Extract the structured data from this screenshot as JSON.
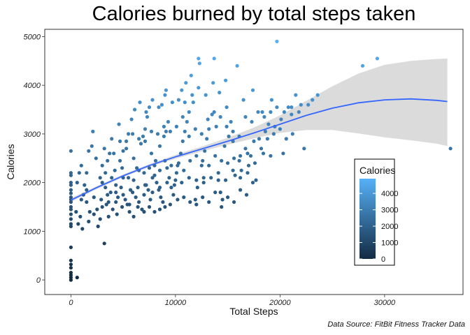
{
  "chart_data": {
    "type": "scatter",
    "title": "Calories burned by total steps taken",
    "xlabel": "Total Steps",
    "ylabel": "Calories",
    "caption": "Data Source: FitBit Fitness Tracker Data",
    "xlim": [
      -2500,
      37500
    ],
    "ylim": [
      -300,
      5150
    ],
    "xticks": [
      0,
      10000,
      20000,
      30000
    ],
    "xtick_labels": [
      "0",
      "10000",
      "20000",
      "30000"
    ],
    "yticks": [
      0,
      1000,
      2000,
      3000,
      4000,
      5000
    ],
    "ytick_labels": [
      "0",
      "1000",
      "2000",
      "3000",
      "4000",
      "5000"
    ],
    "grid": false,
    "legend": {
      "title": "Calories",
      "position": "right-inside",
      "range": [
        0,
        4900
      ],
      "labels": [
        "0",
        "1000",
        "2000",
        "3000",
        "4000"
      ],
      "values": [
        0,
        1000,
        2000,
        3000,
        4000
      ],
      "color_low": "#132B43",
      "color_high": "#56B1F7"
    },
    "colors": {
      "trend": "#3366FF",
      "band": "#D9D9D9"
    },
    "trend": {
      "method": "smooth",
      "x": [
        0,
        2500,
        5000,
        7500,
        10000,
        12500,
        15000,
        17500,
        20000,
        22500,
        25000,
        27500,
        30000,
        32500,
        35000,
        36000
      ],
      "y": [
        1640,
        1900,
        2140,
        2350,
        2530,
        2690,
        2850,
        3020,
        3200,
        3380,
        3530,
        3640,
        3700,
        3720,
        3690,
        3665
      ],
      "lower": [
        1600,
        1870,
        2110,
        2320,
        2490,
        2640,
        2780,
        2910,
        3020,
        3080,
        3080,
        3010,
        2930,
        2870,
        2800,
        2750
      ],
      "upper": [
        1680,
        1930,
        2170,
        2380,
        2570,
        2740,
        2920,
        3130,
        3380,
        3680,
        3980,
        4240,
        4420,
        4500,
        4540,
        4550
      ]
    },
    "points": [
      [
        0,
        0
      ],
      [
        0,
        50
      ],
      [
        0,
        100
      ],
      [
        0,
        150
      ],
      [
        0,
        250
      ],
      [
        0,
        320
      ],
      [
        0,
        400
      ],
      [
        0,
        670
      ],
      [
        600,
        50
      ],
      [
        0,
        2650
      ],
      [
        0,
        2200
      ],
      [
        0,
        2150
      ],
      [
        0,
        2000
      ],
      [
        0,
        1950
      ],
      [
        0,
        1850
      ],
      [
        0,
        1780
      ],
      [
        0,
        1700
      ],
      [
        0,
        1650
      ],
      [
        0,
        1600
      ],
      [
        0,
        1500
      ],
      [
        0,
        1450
      ],
      [
        0,
        1350
      ],
      [
        0,
        1250
      ],
      [
        0,
        1150
      ],
      [
        0,
        1100
      ],
      [
        500,
        1400
      ],
      [
        700,
        1150
      ],
      [
        900,
        1300
      ],
      [
        1100,
        1050
      ],
      [
        1000,
        1650
      ],
      [
        1200,
        1750
      ],
      [
        1300,
        1950
      ],
      [
        1500,
        1850
      ],
      [
        800,
        2200
      ],
      [
        1000,
        2350
      ],
      [
        1500,
        2200
      ],
      [
        1700,
        2650
      ],
      [
        2000,
        2750
      ],
      [
        2100,
        3050
      ],
      [
        1700,
        1200
      ],
      [
        2200,
        1350
      ],
      [
        2500,
        1450
      ],
      [
        2800,
        1250
      ],
      [
        3000,
        1500
      ],
      [
        3200,
        750
      ],
      [
        3400,
        1550
      ],
      [
        3500,
        1750
      ],
      [
        3800,
        1800
      ],
      [
        3000,
        2000
      ],
      [
        3300,
        2200
      ],
      [
        3500,
        2450
      ],
      [
        3700,
        2600
      ],
      [
        3200,
        2700
      ],
      [
        3900,
        2900
      ],
      [
        4200,
        2250
      ],
      [
        4300,
        1600
      ],
      [
        4500,
        1700
      ],
      [
        4800,
        1900
      ],
      [
        5000,
        2100
      ],
      [
        5200,
        1650
      ],
      [
        5400,
        1550
      ],
      [
        5600,
        1400
      ],
      [
        5900,
        1800
      ],
      [
        4700,
        2450
      ],
      [
        5000,
        2650
      ],
      [
        5300,
        2850
      ],
      [
        5500,
        3000
      ],
      [
        4600,
        3200
      ],
      [
        5800,
        3300
      ],
      [
        6000,
        2500
      ],
      [
        6200,
        1700
      ],
      [
        6500,
        1600
      ],
      [
        6800,
        1450
      ],
      [
        7000,
        1750
      ],
      [
        7200,
        1950
      ],
      [
        7400,
        1850
      ],
      [
        7600,
        1650
      ],
      [
        7800,
        2100
      ],
      [
        6300,
        2300
      ],
      [
        6700,
        2800
      ],
      [
        6900,
        2950
      ],
      [
        7100,
        3100
      ],
      [
        7300,
        3350
      ],
      [
        7500,
        3550
      ],
      [
        7700,
        2600
      ],
      [
        8000,
        2150
      ],
      [
        8200,
        2000
      ],
      [
        8400,
        1850
      ],
      [
        8600,
        1700
      ],
      [
        8800,
        1600
      ],
      [
        8100,
        2450
      ],
      [
        8500,
        2750
      ],
      [
        8900,
        2950
      ],
      [
        9100,
        3050
      ],
      [
        9300,
        3250
      ],
      [
        8700,
        3600
      ],
      [
        9000,
        3800
      ],
      [
        9200,
        2300
      ],
      [
        9400,
        2100
      ],
      [
        9600,
        1900
      ],
      [
        9800,
        1750
      ],
      [
        10000,
        2050
      ],
      [
        10100,
        2200
      ],
      [
        10300,
        2400
      ],
      [
        10500,
        2600
      ],
      [
        10700,
        2850
      ],
      [
        10900,
        3050
      ],
      [
        11100,
        3250
      ],
      [
        11300,
        3450
      ],
      [
        10600,
        3900
      ],
      [
        11000,
        4050
      ],
      [
        11500,
        4200
      ],
      [
        11700,
        3650
      ],
      [
        11900,
        1650
      ],
      [
        12100,
        1900
      ],
      [
        12200,
        4550
      ],
      [
        12300,
        4450
      ],
      [
        12500,
        2350
      ],
      [
        12700,
        2100
      ],
      [
        12800,
        2650
      ],
      [
        13000,
        2900
      ],
      [
        13200,
        3100
      ],
      [
        13500,
        3400
      ],
      [
        13700,
        4550
      ],
      [
        13900,
        3150
      ],
      [
        14100,
        2050
      ],
      [
        14300,
        1800
      ],
      [
        14500,
        1650
      ],
      [
        14700,
        2750
      ],
      [
        14900,
        3550
      ],
      [
        15100,
        2950
      ],
      [
        15300,
        3250
      ],
      [
        15500,
        2850
      ],
      [
        15700,
        2150
      ],
      [
        15900,
        4400
      ],
      [
        16100,
        2450
      ],
      [
        16300,
        2250
      ],
      [
        16500,
        3700
      ],
      [
        16700,
        2700
      ],
      [
        17000,
        2350
      ],
      [
        17200,
        2550
      ],
      [
        17400,
        3900
      ],
      [
        17700,
        2050
      ],
      [
        18000,
        2900
      ],
      [
        18300,
        3450
      ],
      [
        18600,
        3050
      ],
      [
        18900,
        3200
      ],
      [
        19200,
        3700
      ],
      [
        19500,
        3150
      ],
      [
        19700,
        4900
      ],
      [
        20100,
        3300
      ],
      [
        20300,
        2600
      ],
      [
        20800,
        3550
      ],
      [
        21100,
        3400
      ],
      [
        21500,
        3800
      ],
      [
        22000,
        3600
      ],
      [
        22300,
        2700
      ],
      [
        22700,
        3600
      ],
      [
        23100,
        3700
      ],
      [
        23600,
        3800
      ],
      [
        27900,
        4400
      ],
      [
        29300,
        4550
      ],
      [
        36300,
        2700
      ],
      [
        600,
        2000
      ],
      [
        1800,
        1400
      ],
      [
        2600,
        1100
      ],
      [
        3000,
        2350
      ],
      [
        3600,
        1300
      ],
      [
        4000,
        1450
      ],
      [
        4400,
        1350
      ],
      [
        4900,
        1500
      ],
      [
        5600,
        1550
      ],
      [
        6000,
        1300
      ],
      [
        6400,
        1500
      ],
      [
        7000,
        1400
      ],
      [
        7500,
        1500
      ],
      [
        8000,
        1400
      ],
      [
        8500,
        1450
      ],
      [
        9000,
        1500
      ],
      [
        9500,
        1550
      ],
      [
        10200,
        1650
      ],
      [
        10800,
        1700
      ],
      [
        11400,
        1600
      ],
      [
        12000,
        1550
      ],
      [
        12600,
        1700
      ],
      [
        13200,
        1600
      ],
      [
        13800,
        1800
      ],
      [
        14400,
        1500
      ],
      [
        15000,
        1700
      ],
      [
        15600,
        1600
      ],
      [
        16200,
        1850
      ],
      [
        16800,
        1750
      ],
      [
        17400,
        2000
      ],
      [
        2400,
        2500
      ],
      [
        2800,
        2100
      ],
      [
        3300,
        1900
      ],
      [
        3900,
        2100
      ],
      [
        4300,
        1950
      ],
      [
        4900,
        2300
      ],
      [
        5500,
        2100
      ],
      [
        6000,
        2050
      ],
      [
        6500,
        2250
      ],
      [
        7000,
        2200
      ],
      [
        7500,
        2300
      ],
      [
        8000,
        2350
      ],
      [
        8500,
        2250
      ],
      [
        9000,
        2450
      ],
      [
        9600,
        2350
      ],
      [
        10200,
        2350
      ],
      [
        10800,
        2250
      ],
      [
        11400,
        2450
      ],
      [
        12000,
        2550
      ],
      [
        12600,
        2450
      ],
      [
        13200,
        2350
      ],
      [
        13800,
        2550
      ],
      [
        14400,
        2450
      ],
      [
        15000,
        2400
      ],
      [
        15600,
        2500
      ],
      [
        16200,
        2550
      ],
      [
        16900,
        2200
      ],
      [
        17600,
        2400
      ],
      [
        18400,
        2600
      ],
      [
        19100,
        2550
      ],
      [
        4100,
        2600
      ],
      [
        4700,
        2850
      ],
      [
        5300,
        2700
      ],
      [
        5900,
        3000
      ],
      [
        6500,
        2900
      ],
      [
        7100,
        2850
      ],
      [
        7700,
        3050
      ],
      [
        8300,
        3000
      ],
      [
        8900,
        3150
      ],
      [
        9500,
        3050
      ],
      [
        10100,
        3150
      ],
      [
        10700,
        3350
      ],
      [
        11300,
        2950
      ],
      [
        11900,
        3100
      ],
      [
        12500,
        3000
      ],
      [
        13100,
        3300
      ],
      [
        13700,
        3450
      ],
      [
        14300,
        3350
      ],
      [
        14900,
        3150
      ],
      [
        15500,
        3050
      ],
      [
        16100,
        2950
      ],
      [
        16700,
        3350
      ],
      [
        17300,
        3250
      ],
      [
        17900,
        3450
      ],
      [
        18500,
        3350
      ],
      [
        19100,
        3450
      ],
      [
        19700,
        3550
      ],
      [
        20400,
        3450
      ],
      [
        21100,
        3550
      ],
      [
        21800,
        3450
      ],
      [
        6100,
        3500
      ],
      [
        6600,
        3650
      ],
      [
        7200,
        3450
      ],
      [
        7800,
        3700
      ],
      [
        8400,
        3550
      ],
      [
        9100,
        3900
      ],
      [
        9700,
        3650
      ],
      [
        10300,
        3700
      ],
      [
        10900,
        3650
      ],
      [
        11600,
        3800
      ],
      [
        12200,
        3950
      ],
      [
        12900,
        3800
      ],
      [
        13600,
        4050
      ],
      [
        14200,
        3850
      ],
      [
        14800,
        4100
      ],
      [
        1500,
        1600
      ],
      [
        2200,
        1700
      ],
      [
        2900,
        1650
      ],
      [
        3600,
        1600
      ],
      [
        4300,
        1800
      ],
      [
        5000,
        1750
      ],
      [
        5700,
        1850
      ],
      [
        6400,
        1900
      ],
      [
        7100,
        1950
      ],
      [
        7800,
        1800
      ],
      [
        8500,
        1900
      ],
      [
        9200,
        2000
      ],
      [
        9900,
        1950
      ],
      [
        10600,
        2000
      ],
      [
        11300,
        2100
      ],
      [
        12000,
        2050
      ],
      [
        12700,
        2000
      ],
      [
        13400,
        2100
      ],
      [
        14100,
        2200
      ],
      [
        14800,
        2050
      ],
      [
        15500,
        2250
      ],
      [
        16200,
        2100
      ],
      [
        16900,
        2600
      ],
      [
        17500,
        2850
      ],
      [
        18200,
        2700
      ],
      [
        18800,
        2900
      ],
      [
        19400,
        3000
      ],
      [
        20000,
        3100
      ],
      [
        20600,
        2900
      ],
      [
        21200,
        3000
      ]
    ]
  }
}
